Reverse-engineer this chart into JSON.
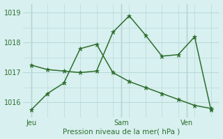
{
  "xlabel": "Pression niveau de la mer( hPa )",
  "background_color": "#d8f0f0",
  "grid_color": "#b8d8d8",
  "line_color": "#2d6e2d",
  "line1_x": [
    0,
    1,
    2,
    3,
    4,
    5,
    6,
    7,
    8,
    9,
    10,
    11
  ],
  "line1_y": [
    1017.25,
    1017.1,
    1017.05,
    1017.0,
    1017.05,
    1018.35,
    1018.9,
    1018.25,
    1017.55,
    1017.6,
    1018.2,
    1015.75
  ],
  "line2_x": [
    0,
    1,
    2,
    3,
    4,
    5,
    6,
    7,
    8,
    9,
    10,
    11
  ],
  "line2_y": [
    1015.75,
    1016.3,
    1016.65,
    1017.8,
    1017.95,
    1017.0,
    1016.7,
    1016.5,
    1016.3,
    1016.1,
    1015.9,
    1015.8
  ],
  "ylim": [
    1015.5,
    1019.3
  ],
  "yticks": [
    1016,
    1017,
    1018,
    1019
  ],
  "xtick_positions": [
    0,
    5.5,
    9.5
  ],
  "xtick_labels": [
    "Jeu",
    "Sam",
    "Ven"
  ],
  "vline_positions": [
    0,
    5.5,
    9.5
  ],
  "xlim": [
    -0.5,
    11.5
  ]
}
